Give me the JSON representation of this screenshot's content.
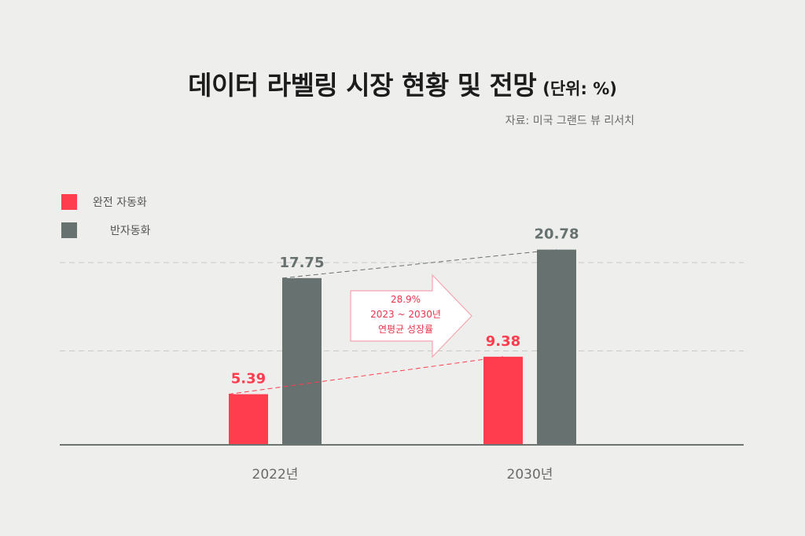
{
  "title": "데이터 라벨링 시장 현황 및 전망",
  "unit": "(단위: %)",
  "source": "자료: 미국 그랜드 뷰 리서치",
  "legend": [
    {
      "label": "완전 자동화",
      "color": "#ff3d4f"
    },
    {
      "label": "반자동화",
      "color": "#67716f"
    }
  ],
  "annotation": {
    "line1": "28.9%",
    "line2": "2023 ~ 2030년",
    "line3": "연평균 성장률"
  },
  "colors": {
    "full_auto": "#ff3d4f",
    "semi_auto": "#67716f",
    "annotation_text": "#e8344a",
    "background": "#eeeeec"
  },
  "chart_data": {
    "type": "bar",
    "categories": [
      "2022년",
      "2030년"
    ],
    "series": [
      {
        "name": "완전 자동화",
        "values": [
          5.39,
          9.38
        ]
      },
      {
        "name": "반자동화",
        "values": [
          17.75,
          20.78
        ]
      }
    ],
    "value_labels": [
      [
        "5.39",
        "9.38"
      ],
      [
        "17.75",
        "20.78"
      ]
    ],
    "ylim": [
      0,
      21
    ],
    "grid": true,
    "legend_position": "top-left"
  }
}
